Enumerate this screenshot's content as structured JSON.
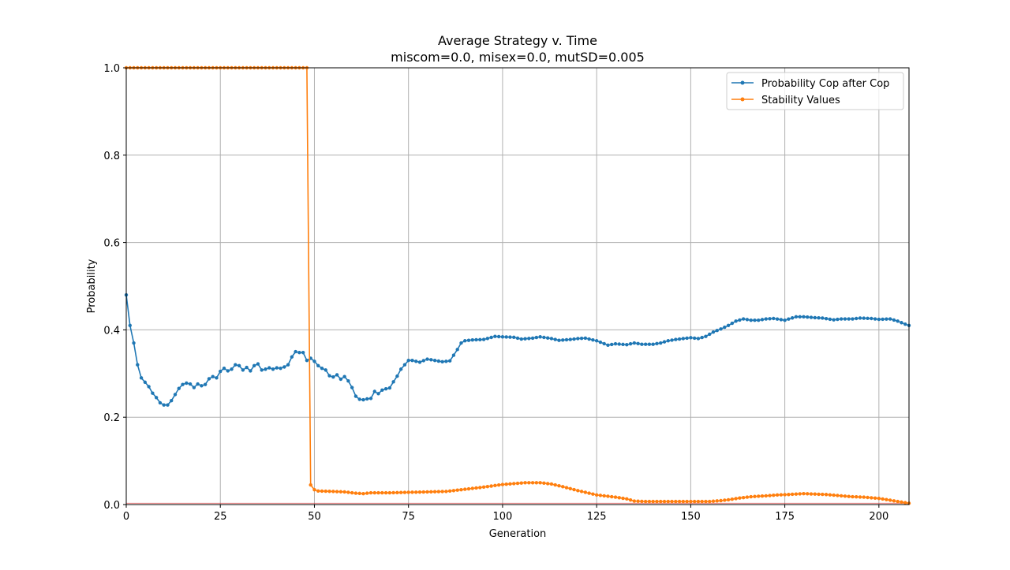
{
  "chart_data": {
    "type": "line",
    "title": "Average Strategy v. Time",
    "subtitle": "miscom=0.0, misex=0.0, mutSD=0.005",
    "xlabel": "Generation",
    "ylabel": "Probability",
    "xlim": [
      0,
      208
    ],
    "ylim": [
      0,
      1
    ],
    "xticks": [
      0,
      25,
      50,
      75,
      100,
      125,
      150,
      175,
      200
    ],
    "yticks": [
      0.0,
      0.2,
      0.4,
      0.6,
      0.8,
      1.0
    ],
    "xtick_labels": [
      "0",
      "25",
      "50",
      "75",
      "100",
      "125",
      "150",
      "175",
      "200"
    ],
    "ytick_labels": [
      "0.0",
      "0.2",
      "0.4",
      "0.6",
      "0.8",
      "1.0"
    ],
    "grid": true,
    "legend_position": "top-right",
    "reference_line": {
      "y": 0.003,
      "color": "#d62728"
    },
    "series": [
      {
        "name": "Probability Cop after Cop",
        "color": "#1f77b4",
        "marker": "circle",
        "keypoints": [
          [
            0,
            0.48
          ],
          [
            1,
            0.41
          ],
          [
            2,
            0.37
          ],
          [
            3,
            0.32
          ],
          [
            4,
            0.29
          ],
          [
            5,
            0.28
          ],
          [
            6,
            0.27
          ],
          [
            7,
            0.255
          ],
          [
            8,
            0.245
          ],
          [
            9,
            0.233
          ],
          [
            10,
            0.228
          ],
          [
            11,
            0.228
          ],
          [
            12,
            0.238
          ],
          [
            13,
            0.252
          ],
          [
            14,
            0.266
          ],
          [
            15,
            0.275
          ],
          [
            16,
            0.278
          ],
          [
            17,
            0.276
          ],
          [
            18,
            0.268
          ],
          [
            19,
            0.276
          ],
          [
            20,
            0.272
          ],
          [
            21,
            0.275
          ],
          [
            22,
            0.288
          ],
          [
            23,
            0.293
          ],
          [
            24,
            0.29
          ],
          [
            25,
            0.305
          ],
          [
            26,
            0.312
          ],
          [
            27,
            0.306
          ],
          [
            28,
            0.31
          ],
          [
            29,
            0.32
          ],
          [
            30,
            0.318
          ],
          [
            31,
            0.308
          ],
          [
            32,
            0.314
          ],
          [
            33,
            0.306
          ],
          [
            34,
            0.318
          ],
          [
            35,
            0.322
          ],
          [
            36,
            0.308
          ],
          [
            37,
            0.31
          ],
          [
            38,
            0.313
          ],
          [
            39,
            0.31
          ],
          [
            40,
            0.313
          ],
          [
            41,
            0.312
          ],
          [
            42,
            0.315
          ],
          [
            43,
            0.32
          ],
          [
            44,
            0.338
          ],
          [
            45,
            0.35
          ],
          [
            46,
            0.348
          ],
          [
            47,
            0.348
          ],
          [
            48,
            0.33
          ],
          [
            49,
            0.335
          ],
          [
            50,
            0.328
          ],
          [
            51,
            0.318
          ],
          [
            52,
            0.312
          ],
          [
            53,
            0.308
          ],
          [
            54,
            0.295
          ],
          [
            55,
            0.292
          ],
          [
            56,
            0.297
          ],
          [
            57,
            0.287
          ],
          [
            58,
            0.293
          ],
          [
            59,
            0.283
          ],
          [
            60,
            0.268
          ],
          [
            61,
            0.248
          ],
          [
            62,
            0.241
          ],
          [
            63,
            0.24
          ],
          [
            64,
            0.242
          ],
          [
            65,
            0.243
          ],
          [
            66,
            0.259
          ],
          [
            67,
            0.254
          ],
          [
            68,
            0.262
          ],
          [
            69,
            0.265
          ],
          [
            70,
            0.267
          ],
          [
            71,
            0.281
          ],
          [
            72,
            0.294
          ],
          [
            73,
            0.31
          ],
          [
            74,
            0.32
          ],
          [
            75,
            0.33
          ],
          [
            76,
            0.33
          ],
          [
            77,
            0.328
          ],
          [
            78,
            0.326
          ],
          [
            80,
            0.333
          ],
          [
            82,
            0.33
          ],
          [
            84,
            0.327
          ],
          [
            86,
            0.329
          ],
          [
            87,
            0.342
          ],
          [
            88,
            0.355
          ],
          [
            89,
            0.37
          ],
          [
            90,
            0.375
          ],
          [
            92,
            0.377
          ],
          [
            95,
            0.378
          ],
          [
            98,
            0.385
          ],
          [
            100,
            0.384
          ],
          [
            103,
            0.383
          ],
          [
            105,
            0.379
          ],
          [
            108,
            0.381
          ],
          [
            110,
            0.384
          ],
          [
            113,
            0.38
          ],
          [
            115,
            0.376
          ],
          [
            118,
            0.378
          ],
          [
            120,
            0.38
          ],
          [
            122,
            0.381
          ],
          [
            125,
            0.375
          ],
          [
            128,
            0.365
          ],
          [
            130,
            0.368
          ],
          [
            133,
            0.366
          ],
          [
            135,
            0.37
          ],
          [
            137,
            0.367
          ],
          [
            140,
            0.367
          ],
          [
            142,
            0.37
          ],
          [
            144,
            0.375
          ],
          [
            146,
            0.378
          ],
          [
            148,
            0.38
          ],
          [
            150,
            0.382
          ],
          [
            152,
            0.38
          ],
          [
            154,
            0.385
          ],
          [
            156,
            0.395
          ],
          [
            158,
            0.402
          ],
          [
            160,
            0.41
          ],
          [
            162,
            0.42
          ],
          [
            164,
            0.425
          ],
          [
            166,
            0.422
          ],
          [
            168,
            0.422
          ],
          [
            170,
            0.425
          ],
          [
            172,
            0.426
          ],
          [
            175,
            0.422
          ],
          [
            178,
            0.43
          ],
          [
            180,
            0.43
          ],
          [
            183,
            0.428
          ],
          [
            185,
            0.427
          ],
          [
            188,
            0.423
          ],
          [
            190,
            0.425
          ],
          [
            193,
            0.425
          ],
          [
            195,
            0.427
          ],
          [
            198,
            0.426
          ],
          [
            200,
            0.424
          ],
          [
            203,
            0.425
          ],
          [
            205,
            0.42
          ],
          [
            207,
            0.413
          ],
          [
            208,
            0.41
          ]
        ]
      },
      {
        "name": "Stability Values",
        "color": "#ff7f0e",
        "marker": "circle",
        "keypoints": [
          [
            0,
            1.0
          ],
          [
            48,
            1.0
          ],
          [
            49,
            0.045
          ],
          [
            50,
            0.034
          ],
          [
            51,
            0.031
          ],
          [
            55,
            0.03
          ],
          [
            58,
            0.029
          ],
          [
            60,
            0.027
          ],
          [
            61,
            0.026
          ],
          [
            63,
            0.025
          ],
          [
            65,
            0.027
          ],
          [
            70,
            0.027
          ],
          [
            75,
            0.028
          ],
          [
            80,
            0.029
          ],
          [
            85,
            0.03
          ],
          [
            90,
            0.035
          ],
          [
            95,
            0.04
          ],
          [
            100,
            0.046
          ],
          [
            103,
            0.048
          ],
          [
            106,
            0.05
          ],
          [
            110,
            0.05
          ],
          [
            113,
            0.047
          ],
          [
            116,
            0.041
          ],
          [
            120,
            0.032
          ],
          [
            125,
            0.022
          ],
          [
            130,
            0.017
          ],
          [
            133,
            0.013
          ],
          [
            135,
            0.008
          ],
          [
            138,
            0.007
          ],
          [
            140,
            0.007
          ],
          [
            145,
            0.007
          ],
          [
            150,
            0.007
          ],
          [
            155,
            0.007
          ],
          [
            158,
            0.009
          ],
          [
            160,
            0.011
          ],
          [
            163,
            0.015
          ],
          [
            166,
            0.018
          ],
          [
            170,
            0.02
          ],
          [
            173,
            0.022
          ],
          [
            176,
            0.023
          ],
          [
            180,
            0.025
          ],
          [
            183,
            0.024
          ],
          [
            186,
            0.023
          ],
          [
            190,
            0.02
          ],
          [
            193,
            0.018
          ],
          [
            196,
            0.017
          ],
          [
            200,
            0.014
          ],
          [
            203,
            0.01
          ],
          [
            205,
            0.007
          ],
          [
            208,
            0.003
          ]
        ]
      }
    ]
  }
}
